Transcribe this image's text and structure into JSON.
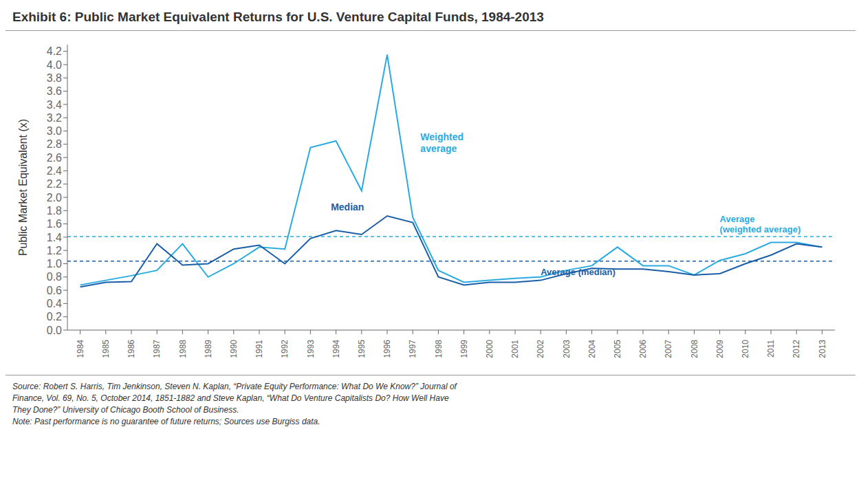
{
  "chart_data": {
    "type": "line",
    "title": "Exhibit 6: Public Market Equivalent Returns for U.S. Venture Capital Funds, 1984-2013",
    "ylabel": "Public Market Equivalent (x)",
    "x": [
      1984,
      1985,
      1986,
      1987,
      1988,
      1989,
      1990,
      1991,
      1992,
      1993,
      1994,
      1995,
      1996,
      1997,
      1998,
      1999,
      2000,
      2001,
      2002,
      2003,
      2004,
      2005,
      2006,
      2007,
      2008,
      2009,
      2010,
      2011,
      2012,
      2013
    ],
    "xlim": [
      1983.5,
      2013.5
    ],
    "xticks": [
      1984,
      1985,
      1986,
      1987,
      1988,
      1989,
      1990,
      1991,
      1992,
      1993,
      1994,
      1995,
      1996,
      1997,
      1998,
      1999,
      2000,
      2001,
      2002,
      2003,
      2004,
      2005,
      2006,
      2007,
      2008,
      2009,
      2010,
      2011,
      2012,
      2013
    ],
    "ylim": [
      0.0,
      4.3
    ],
    "yticks": [
      {
        "value": 0,
        "label": "0.0"
      },
      0.2,
      0.4,
      0.6,
      0.8,
      {
        "value": 1,
        "label": "1.0"
      },
      1.2,
      1.4,
      1.6,
      1.8,
      {
        "value": 2,
        "label": "2.0"
      },
      2.2,
      2.4,
      2.6,
      2.8,
      {
        "value": 3,
        "label": "3.0"
      },
      3.2,
      3.4,
      3.6,
      3.8,
      {
        "value": 4,
        "label": "4.0"
      },
      4.2
    ],
    "grid": false,
    "series": [
      {
        "name": "Weighted\naverage",
        "color": "#29ABE2",
        "values": [
          0.68,
          0.75,
          0.82,
          0.9,
          1.3,
          0.8,
          1.0,
          1.25,
          1.22,
          2.75,
          2.85,
          2.1,
          4.15,
          1.7,
          0.9,
          0.72,
          0.75,
          0.78,
          0.8,
          0.9,
          0.97,
          1.25,
          0.97,
          0.97,
          0.83,
          1.05,
          1.15,
          1.32,
          1.32,
          1.25
        ]
      },
      {
        "name": "Median",
        "color": "#1A5EA8",
        "values": [
          0.65,
          0.72,
          0.73,
          1.3,
          0.98,
          1.0,
          1.22,
          1.28,
          1.0,
          1.38,
          1.5,
          1.44,
          1.72,
          1.62,
          0.8,
          0.68,
          0.72,
          0.72,
          0.75,
          0.85,
          0.93,
          0.92,
          0.92,
          0.88,
          0.83,
          0.85,
          1.0,
          1.13,
          1.3,
          1.25
        ]
      }
    ],
    "hlines": [
      {
        "value": 1.41,
        "label": "Average\n(weighted average)",
        "color": "#29ABE2",
        "line_style": "dashed"
      },
      {
        "value": 1.04,
        "label": "Average (median)",
        "color": "#1A5EA8",
        "line_style": "dashed"
      }
    ],
    "notes": [
      "Source: Robert S. Harris, Tim Jenkinson, Steven N. Kaplan, “Private Equity Performance: What Do We Know?” Journal of",
      "Finance, Vol. 69, No. 5, October 2014, 1851-1882 and Steve Kaplan, “What Do Venture Capitalists Do? How Well Have",
      "They Done?” University of Chicago Booth School of Business.",
      "Note: Past performance is no guarantee of future returns; Sources use Burgiss data."
    ]
  }
}
